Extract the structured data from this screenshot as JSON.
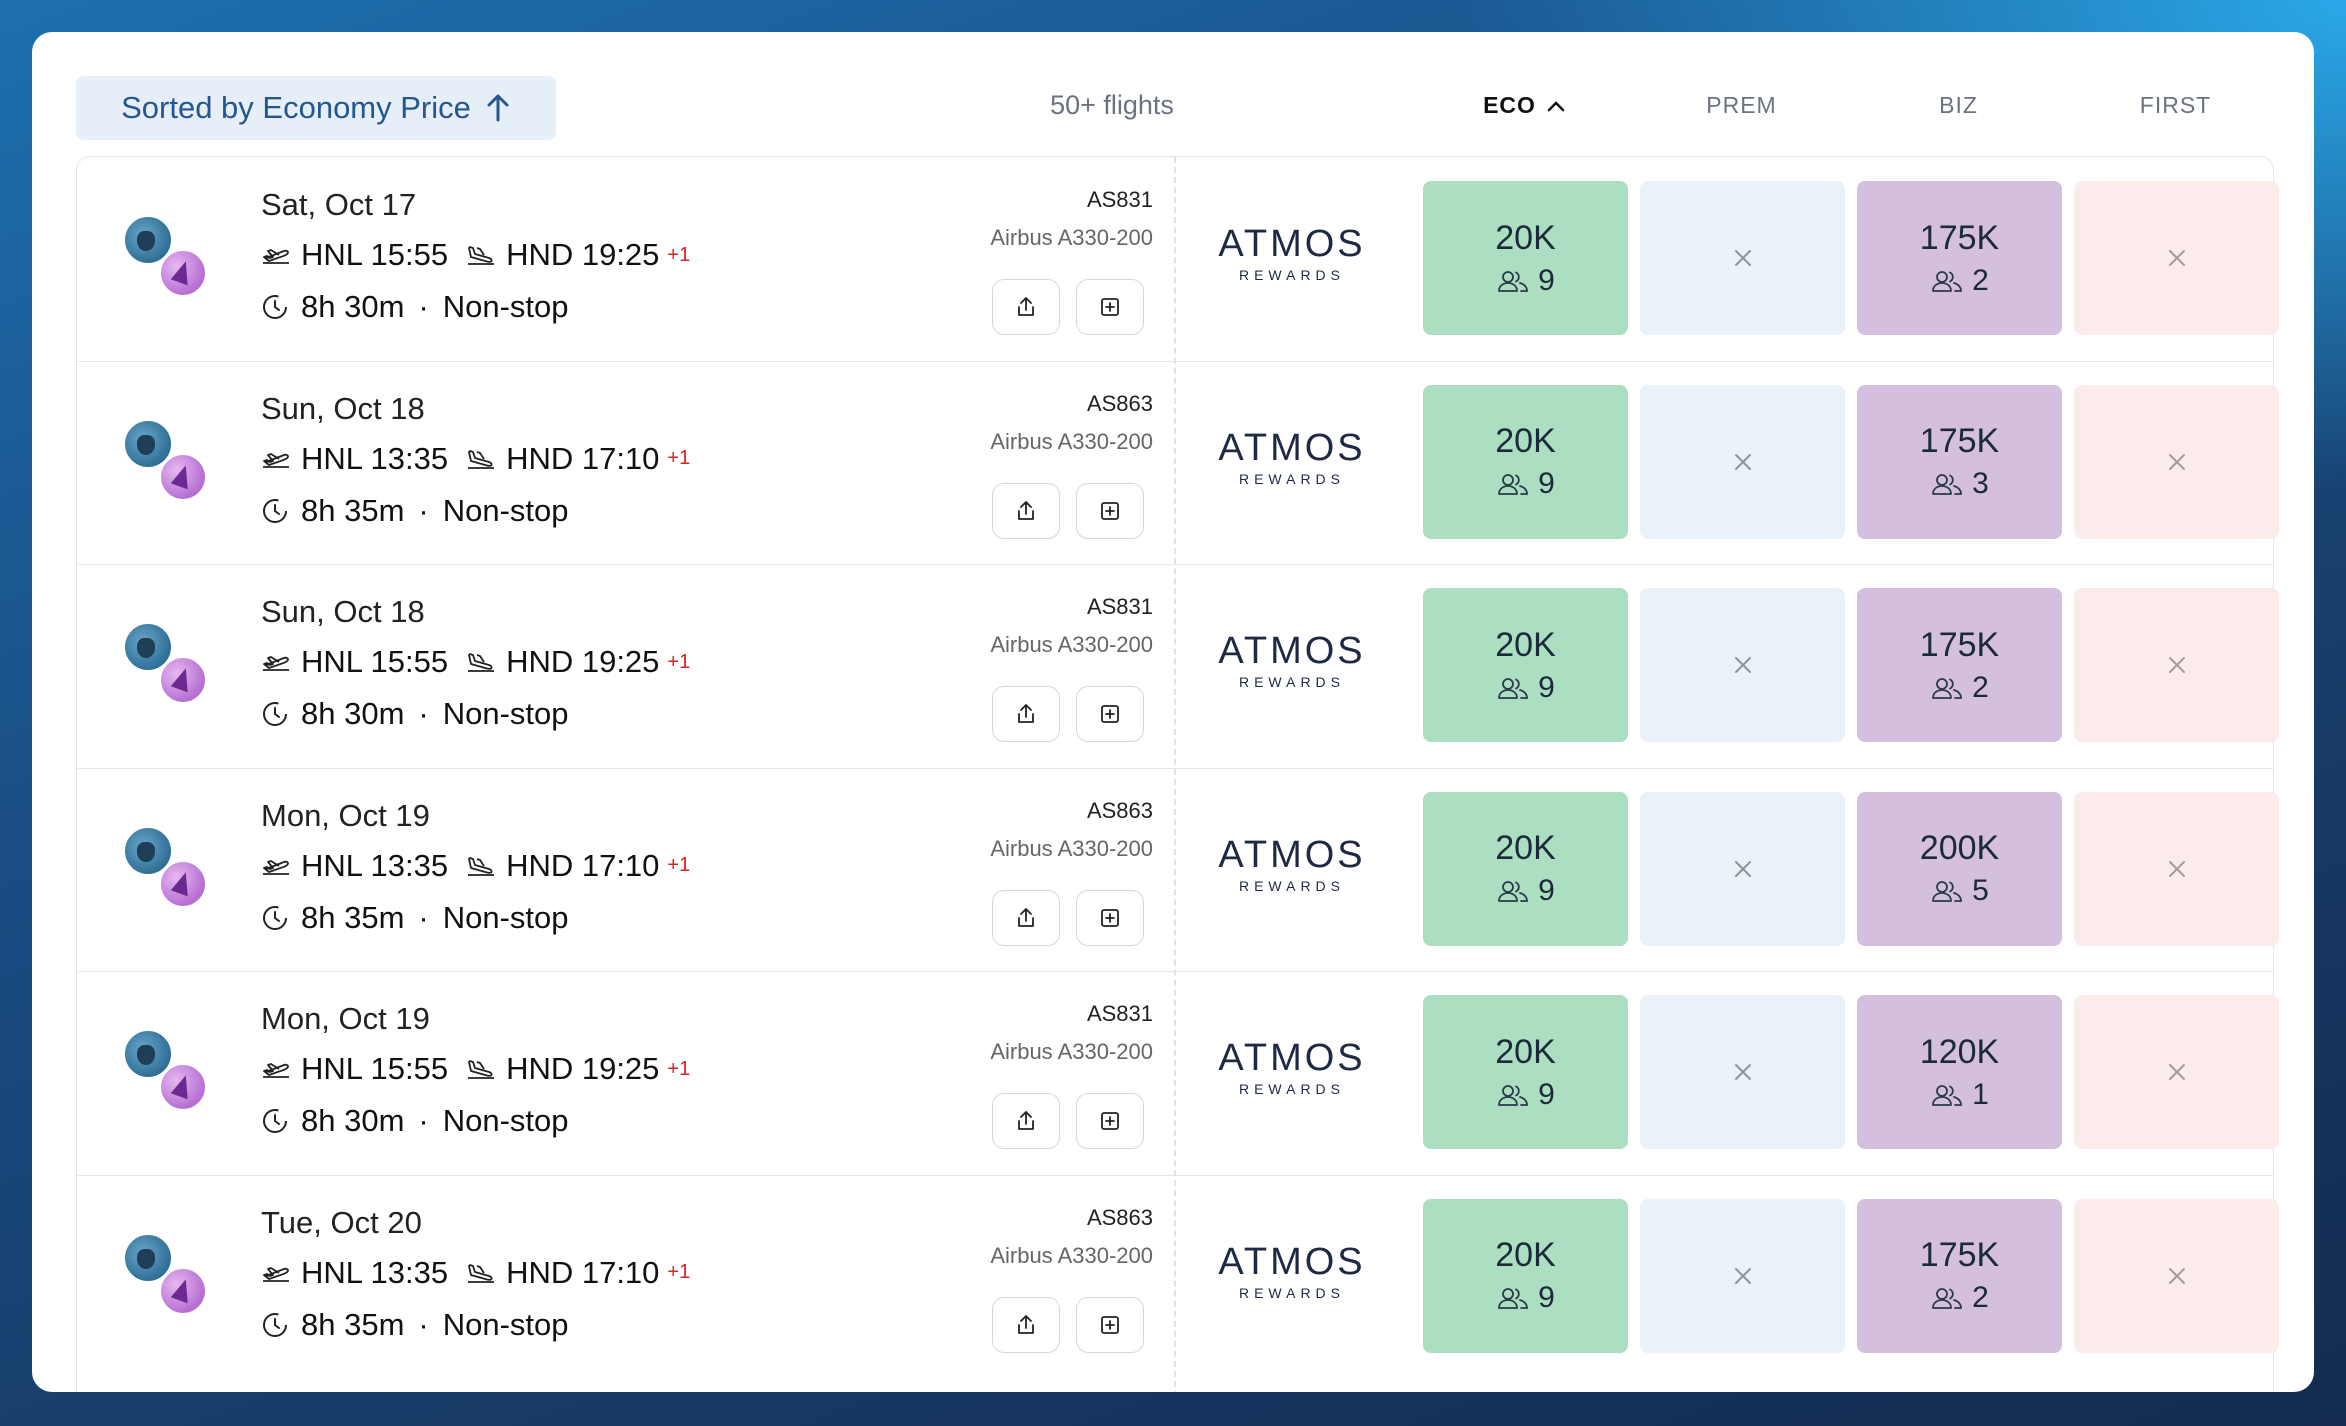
{
  "header": {
    "sort_label": "Sorted by Economy Price",
    "flight_count": "50+ flights",
    "columns": [
      {
        "label": "ECO",
        "active": true
      },
      {
        "label": "PREM",
        "active": false
      },
      {
        "label": "BIZ",
        "active": false
      },
      {
        "label": "FIRST",
        "active": false
      }
    ]
  },
  "program": {
    "name": "ATMOS",
    "sub": "REWARDS"
  },
  "flights": [
    {
      "date": "Sat, Oct 17",
      "dep": "HNL 15:55",
      "arr": "HND 19:25",
      "plus": "+1",
      "duration": "8h 30m",
      "stops": "Non-stop",
      "flight_no": "AS831",
      "aircraft": "Airbus A330-200",
      "eco_pts": "20K",
      "eco_seats": "9",
      "biz_pts": "175K",
      "biz_seats": "2"
    },
    {
      "date": "Sun, Oct 18",
      "dep": "HNL 13:35",
      "arr": "HND 17:10",
      "plus": "+1",
      "duration": "8h 35m",
      "stops": "Non-stop",
      "flight_no": "AS863",
      "aircraft": "Airbus A330-200",
      "eco_pts": "20K",
      "eco_seats": "9",
      "biz_pts": "175K",
      "biz_seats": "3"
    },
    {
      "date": "Sun, Oct 18",
      "dep": "HNL 15:55",
      "arr": "HND 19:25",
      "plus": "+1",
      "duration": "8h 30m",
      "stops": "Non-stop",
      "flight_no": "AS831",
      "aircraft": "Airbus A330-200",
      "eco_pts": "20K",
      "eco_seats": "9",
      "biz_pts": "175K",
      "biz_seats": "2"
    },
    {
      "date": "Mon, Oct 19",
      "dep": "HNL 13:35",
      "arr": "HND 17:10",
      "plus": "+1",
      "duration": "8h 35m",
      "stops": "Non-stop",
      "flight_no": "AS863",
      "aircraft": "Airbus A330-200",
      "eco_pts": "20K",
      "eco_seats": "9",
      "biz_pts": "200K",
      "biz_seats": "5"
    },
    {
      "date": "Mon, Oct 19",
      "dep": "HNL 15:55",
      "arr": "HND 19:25",
      "plus": "+1",
      "duration": "8h 30m",
      "stops": "Non-stop",
      "flight_no": "AS831",
      "aircraft": "Airbus A330-200",
      "eco_pts": "20K",
      "eco_seats": "9",
      "biz_pts": "120K",
      "biz_seats": "1"
    },
    {
      "date": "Tue, Oct 20",
      "dep": "HNL 13:35",
      "arr": "HND 17:10",
      "plus": "+1",
      "duration": "8h 35m",
      "stops": "Non-stop",
      "flight_no": "AS863",
      "aircraft": "Airbus A330-200",
      "eco_pts": "20K",
      "eco_seats": "9",
      "biz_pts": "175K",
      "biz_seats": "2"
    }
  ],
  "colors": {
    "eco": "#acdfc1",
    "prem": "#eaf1f8",
    "biz": "#d5bfdf",
    "first": "#fbeceb",
    "plus": "#dd2222"
  },
  "icons": {
    "depart": "takeoff-icon",
    "arrive": "landing-icon",
    "duration": "clock-icon",
    "share": "share-icon",
    "add": "add-icon",
    "seats": "users-icon",
    "unavailable": "close-icon",
    "sort": "arrow-up-icon"
  }
}
